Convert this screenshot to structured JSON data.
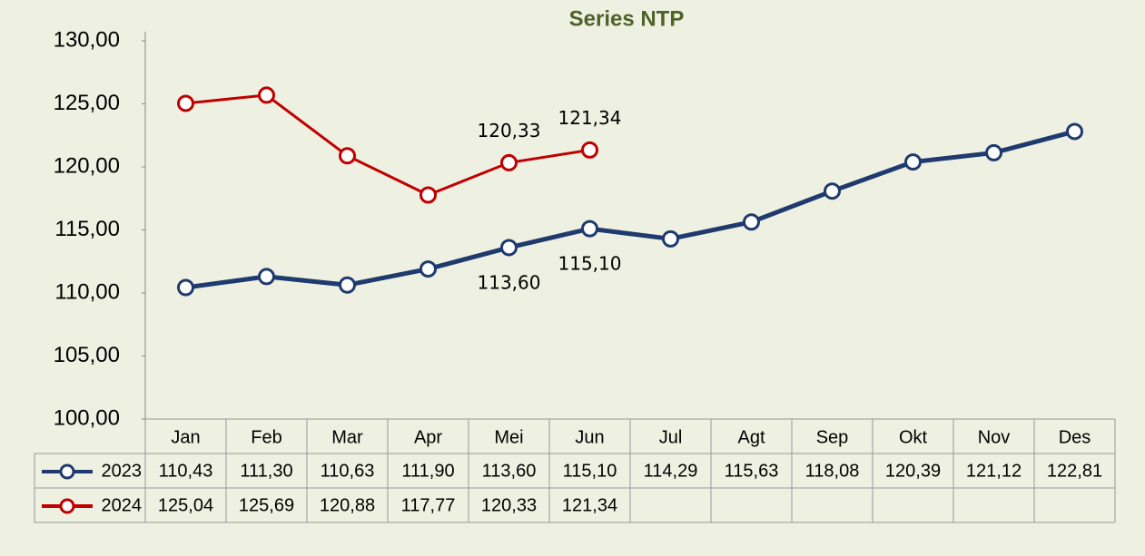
{
  "chart_data": {
    "type": "line",
    "title": "Series NTP",
    "categories": [
      "Jan",
      "Feb",
      "Mar",
      "Apr",
      "Mei",
      "Jun",
      "Jul",
      "Agt",
      "Sep",
      "Okt",
      "Nov",
      "Des"
    ],
    "series": [
      {
        "name": "2023",
        "color": "#1f3a6e",
        "values": [
          110.43,
          111.3,
          110.63,
          111.9,
          113.6,
          115.1,
          114.29,
          115.63,
          118.08,
          120.39,
          121.12,
          122.81
        ],
        "value_labels": [
          "110,43",
          "111,30",
          "110,63",
          "111,90",
          "113,60",
          "115,10",
          "114,29",
          "115,63",
          "118,08",
          "120,39",
          "121,12",
          "122,81"
        ],
        "labeled_points": [
          4,
          5
        ],
        "label_position": "below"
      },
      {
        "name": "2024",
        "color": "#c00000",
        "values": [
          125.04,
          125.69,
          120.88,
          117.77,
          120.33,
          121.34,
          null,
          null,
          null,
          null,
          null,
          null
        ],
        "value_labels": [
          "125,04",
          "125,69",
          "120,88",
          "117,77",
          "120,33",
          "121,34",
          null,
          null,
          null,
          null,
          null,
          null
        ],
        "labeled_points": [
          4,
          5
        ],
        "label_position": "above"
      }
    ],
    "ylim": [
      100,
      130
    ],
    "yticks": [
      {
        "value": 100,
        "label": "100,00"
      },
      {
        "value": 105,
        "label": "105,00"
      },
      {
        "value": 110,
        "label": "110,00"
      },
      {
        "value": 115,
        "label": "115,00"
      },
      {
        "value": 120,
        "label": "120,00"
      },
      {
        "value": 125,
        "label": "125,00"
      },
      {
        "value": 130,
        "label": "130,00"
      }
    ],
    "grid": false,
    "data_table": true
  }
}
